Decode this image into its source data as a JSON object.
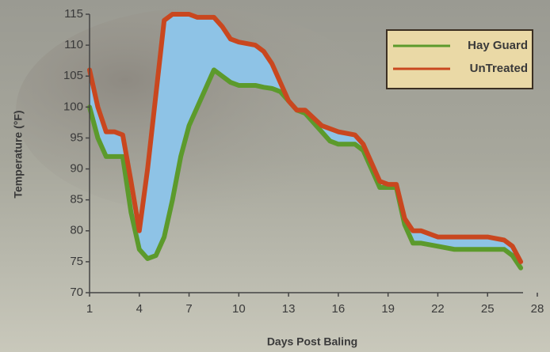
{
  "chart_data": {
    "type": "line",
    "x_label": "Days Post Baling",
    "y_label": "Temperature (°F)",
    "x": [
      1,
      1.5,
      2,
      2.5,
      3,
      3.5,
      4,
      4.5,
      5,
      5.5,
      6,
      6.5,
      7,
      7.5,
      8,
      8.5,
      9,
      9.5,
      10,
      11,
      11.5,
      12,
      12.5,
      13,
      13.5,
      14,
      15,
      15.5,
      16,
      17,
      17.5,
      18,
      18.5,
      19,
      19.5,
      20,
      20.5,
      21,
      22,
      23,
      24,
      25,
      26,
      26.5,
      27
    ],
    "series": [
      {
        "name": "Hay Guard",
        "color": "#5c9a2c",
        "values": [
          100,
          95,
          92,
          92,
          92,
          83,
          77,
          75.5,
          76,
          79,
          85,
          92,
          97,
          100,
          103,
          106,
          105,
          104,
          103.5,
          103.5,
          103.2,
          103,
          102.5,
          101,
          99.5,
          99,
          96,
          94.5,
          94,
          94,
          93,
          90,
          87,
          87,
          87,
          81,
          78,
          78,
          77.5,
          77,
          77,
          77,
          77,
          76,
          74
        ]
      },
      {
        "name": "UnTreated",
        "color": "#c9471f",
        "values": [
          106,
          100,
          96,
          96,
          95.5,
          88,
          80,
          90,
          102,
          114,
          115,
          115,
          115,
          114.5,
          114.5,
          114.5,
          113,
          111,
          110.5,
          110,
          109,
          107,
          104,
          101,
          99.5,
          99.5,
          97,
          96.5,
          96,
          95.5,
          94,
          91,
          88,
          87.5,
          87.5,
          82,
          80,
          80,
          79,
          79,
          79,
          79,
          78.5,
          77.5,
          75
        ]
      }
    ],
    "fill_between": {
      "color": "#8ec3e6"
    },
    "xlim": [
      1,
      28
    ],
    "xticks": [
      1,
      4,
      7,
      10,
      13,
      16,
      19,
      22,
      25,
      28
    ],
    "ylim": [
      70,
      115
    ],
    "yticks": [
      70,
      75,
      80,
      85,
      90,
      95,
      100,
      105,
      110,
      115
    ],
    "legend": "top-right"
  }
}
